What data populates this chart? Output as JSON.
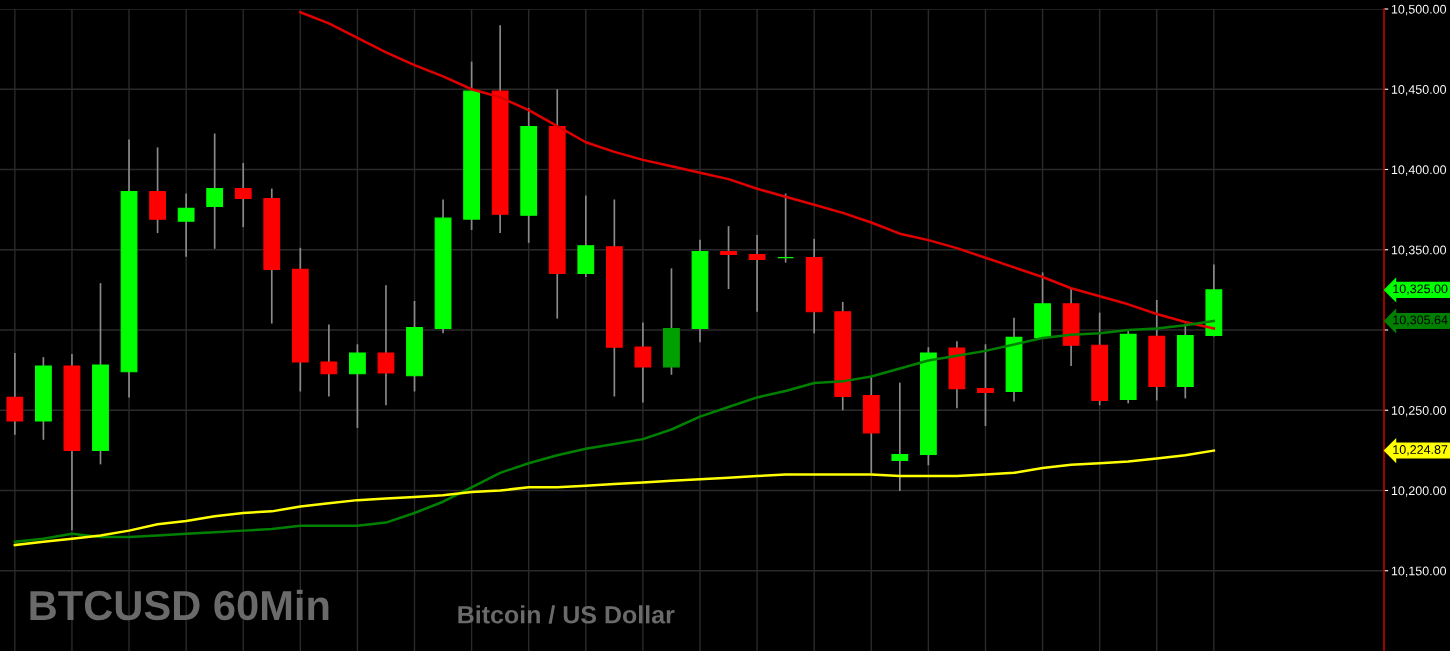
{
  "chart_data": {
    "type": "candlestick",
    "title": "BTCUSD 60Min",
    "subtitle": "Bitcoin / US Dollar",
    "categories": [
      null,
      null,
      null,
      null,
      null,
      null,
      null,
      null,
      null,
      null,
      null,
      null,
      null,
      null,
      null,
      null,
      null,
      null,
      null,
      null,
      null,
      null,
      null,
      null,
      null,
      null,
      null,
      null,
      null,
      null,
      null,
      null,
      null,
      null,
      null,
      null,
      null,
      null,
      null,
      null,
      null,
      null,
      null
    ],
    "ohlc": [
      [
        10258,
        10285.6,
        10234.7,
        10243.3
      ],
      [
        10243.3,
        10283.1,
        10231.6,
        10277.6
      ],
      [
        10277.6,
        10285,
        10175.2,
        10224.9
      ],
      [
        10224.9,
        10329.2,
        10216.3,
        10278.2
      ],
      [
        10274,
        10418.7,
        10258,
        10386.2
      ],
      [
        10386.2,
        10413.8,
        10360.4,
        10369.1
      ],
      [
        10367.8,
        10385,
        10345.7,
        10375.8
      ],
      [
        10377,
        10422.4,
        10350.6,
        10388.1
      ],
      [
        10388.1,
        10404,
        10364.1,
        10381.9
      ],
      [
        10381.9,
        10388.1,
        10304,
        10337.8
      ],
      [
        10337.8,
        10351.2,
        10261.7,
        10280.1
      ],
      [
        10280.1,
        10303.4,
        10258.6,
        10272.7
      ],
      [
        10272.7,
        10291.1,
        10239,
        10285.6
      ],
      [
        10285.6,
        10327.9,
        10253.1,
        10273.3
      ],
      [
        10271.5,
        10318.1,
        10261.7,
        10301.5
      ],
      [
        10300.9,
        10381.3,
        10297.9,
        10369.7
      ],
      [
        10369.1,
        10467.2,
        10362.3,
        10448.8
      ],
      [
        10448.8,
        10489.9,
        10360.4,
        10372.1
      ],
      [
        10371.5,
        10438.4,
        10354.3,
        10426.7
      ],
      [
        10426.7,
        10450,
        10307.1,
        10335.3
      ],
      [
        10335.3,
        10383.8,
        10333,
        10352.5
      ],
      [
        10351.9,
        10381.3,
        10258.6,
        10289.3
      ],
      [
        10289.3,
        10304.6,
        10254.9,
        10277
      ],
      [
        10277,
        10338.4,
        10272.1,
        10300.9
      ],
      [
        10300.9,
        10356.2,
        10292.4,
        10348.8
      ],
      [
        10348.8,
        10364.7,
        10325.5,
        10347
      ],
      [
        10347,
        10359.2,
        10311.4,
        10343.9
      ],
      [
        10345.1,
        10385,
        10342,
        10345.1
      ],
      [
        10345.1,
        10356.8,
        10297.9,
        10311.4
      ],
      [
        10311.4,
        10317.5,
        10250,
        10258.6
      ],
      [
        10259.2,
        10270.9,
        10210.8,
        10235.9
      ],
      [
        10218.7,
        10267.2,
        10199.7,
        10222.4
      ],
      [
        10222.4,
        10289.3,
        10215.7,
        10285.6
      ],
      [
        10288.7,
        10293,
        10251.2,
        10263.5
      ],
      [
        10263.5,
        10291.1,
        10240.2,
        10261.1
      ],
      [
        10261.7,
        10307.7,
        10255.5,
        10295.4
      ],
      [
        10295.4,
        10335.9,
        10295,
        10316.3
      ],
      [
        10316.3,
        10325.5,
        10277.6,
        10290.5
      ],
      [
        10290.5,
        10310.8,
        10253.1,
        10256.1
      ],
      [
        10256.8,
        10299.7,
        10254.3,
        10297.3
      ],
      [
        10296,
        10318.7,
        10256.1,
        10264.8
      ],
      [
        10264.8,
        10304,
        10257.4,
        10296.6
      ],
      [
        10296.6,
        10340.8,
        10296,
        10325
      ]
    ],
    "colors": [
      "#ff0000",
      "#00ff00",
      "#ff0000",
      "#00ff00",
      "#00ff00",
      "#ff0000",
      "#00ff00",
      "#00ff00",
      "#ff0000",
      "#ff0000",
      "#ff0000",
      "#ff0000",
      "#00ff00",
      "#ff0000",
      "#00ff00",
      "#00ff00",
      "#00ff00",
      "#ff0000",
      "#00ff00",
      "#ff0000",
      "#00ff00",
      "#ff0000",
      "#ff0000",
      "#00a000",
      "#00ff00",
      "#ff0000",
      "#ff0000",
      "#00ff00",
      "#ff0000",
      "#ff0000",
      "#ff0000",
      "#00ff00",
      "#00ff00",
      "#ff0000",
      "#ff0000",
      "#00ff00",
      "#00ff00",
      "#ff0000",
      "#ff0000",
      "#00ff00",
      "#ff0000",
      "#00ff00",
      "#00ff00"
    ],
    "series": [
      {
        "type": "line",
        "color": "#e00000",
        "values": [
          null,
          null,
          null,
          null,
          null,
          null,
          null,
          null,
          null,
          null,
          10498,
          10491,
          10482,
          10473,
          10465,
          10458,
          10450,
          10445,
          10437,
          10427,
          10417,
          10411,
          10406,
          10402,
          10398,
          10394,
          10388,
          10383,
          10378,
          10373,
          10367,
          10360,
          10356,
          10351,
          10345,
          10339,
          10333,
          10326,
          10321,
          10316,
          10310,
          10305,
          10301
        ]
      },
      {
        "type": "line",
        "color": "#008000",
        "values": [
          10168,
          10170,
          10173,
          10171,
          10171,
          10172,
          10173,
          10174,
          10175,
          10176,
          10178,
          10178,
          10178,
          10180,
          10186,
          10193,
          10202,
          10211,
          10217,
          10222,
          10226,
          10229,
          10232,
          10238,
          10246,
          10252,
          10258,
          10262,
          10267,
          10268,
          10271,
          10276,
          10281,
          10284,
          10287,
          10291,
          10295,
          10297,
          10298,
          10300,
          10301,
          10303,
          10305.64
        ]
      },
      {
        "type": "line",
        "color": "#ffff00",
        "values": [
          10166,
          10168,
          10170,
          10172,
          10175,
          10179,
          10181,
          10184,
          10186,
          10187,
          10190,
          10192,
          10194,
          10195,
          10196,
          10197,
          10199,
          10200,
          10202,
          10202,
          10203,
          10204,
          10205,
          10206,
          10207,
          10208,
          10209,
          10210,
          10210,
          10210,
          10210,
          10209,
          10209,
          10209,
          10210,
          10211,
          10214,
          10216,
          10217,
          10218,
          10220,
          10222,
          10224.87
        ]
      }
    ],
    "ylim": [
      10100,
      10500
    ],
    "yticks": [
      {
        "value": 10150,
        "label": "10,150.00"
      },
      {
        "value": 10200,
        "label": "10,200.00"
      },
      {
        "value": 10250,
        "label": "10,250.00"
      },
      {
        "value": 10300,
        "label": null
      },
      {
        "value": 10350,
        "label": "10,350.00"
      },
      {
        "value": 10400,
        "label": "10,400.00"
      },
      {
        "value": 10450,
        "label": "10,450.00"
      },
      {
        "value": 10500,
        "label": "10,500.00"
      }
    ],
    "annotations": [
      "10,325.00",
      "10,305.64",
      "10,224.87"
    ],
    "grid": true,
    "legend": false
  }
}
